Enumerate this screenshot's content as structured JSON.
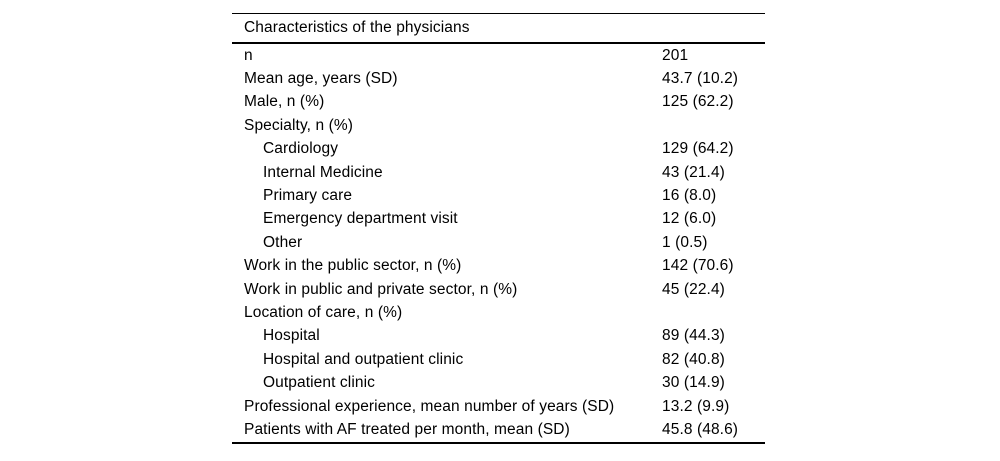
{
  "table": {
    "header": "Characteristics of the physicians",
    "rows": [
      {
        "label": "n",
        "value": "201",
        "indent": false
      },
      {
        "label": "Mean age, years (SD)",
        "value": "43.7 (10.2)",
        "indent": false
      },
      {
        "label": "Male, n (%)",
        "value": "125 (62.2)",
        "indent": false
      },
      {
        "label": "Specialty, n (%)",
        "value": "",
        "indent": false
      },
      {
        "label": "Cardiology",
        "value": "129 (64.2)",
        "indent": true
      },
      {
        "label": "Internal Medicine",
        "value": "43 (21.4)",
        "indent": true
      },
      {
        "label": "Primary care",
        "value": "16 (8.0)",
        "indent": true
      },
      {
        "label": "Emergency department visit",
        "value": "12 (6.0)",
        "indent": true
      },
      {
        "label": "Other",
        "value": "1 (0.5)",
        "indent": true
      },
      {
        "label": "Work in the public sector, n (%)",
        "value": "142 (70.6)",
        "indent": false
      },
      {
        "label": "Work in public and private sector, n (%)",
        "value": "45 (22.4)",
        "indent": false
      },
      {
        "label": "Location of care, n (%)",
        "value": "",
        "indent": false
      },
      {
        "label": "Hospital",
        "value": "89 (44.3)",
        "indent": true
      },
      {
        "label": "Hospital and outpatient clinic",
        "value": "82 (40.8)",
        "indent": true
      },
      {
        "label": "Outpatient clinic",
        "value": "30 (14.9)",
        "indent": true
      },
      {
        "label": "Professional experience, mean number of years (SD)",
        "value": "13.2 (9.9)",
        "indent": false
      },
      {
        "label": "Patients with AF treated per month, mean (SD)",
        "value": "45.8 (48.6)",
        "indent": false
      }
    ],
    "colors": {
      "text": "#000000",
      "rule": "#000000",
      "background": "#ffffff"
    }
  }
}
